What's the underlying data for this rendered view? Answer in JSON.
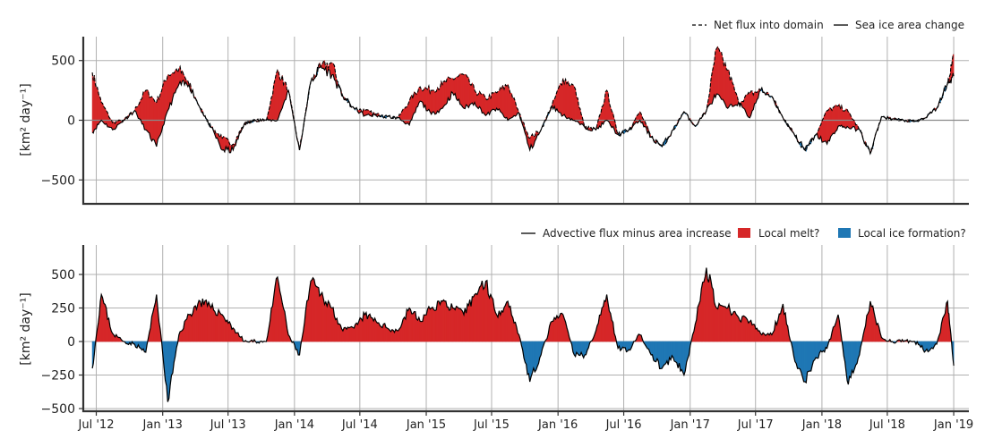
{
  "chart_data": [
    {
      "type": "area",
      "id": "top",
      "ylabel": "[km² day⁻¹]",
      "ylim": [
        -700,
        700
      ],
      "yticks": [
        -500,
        0,
        500
      ],
      "ytick_labels": [
        "−500",
        "0",
        "500"
      ],
      "grid": true,
      "legend_position": "top-right",
      "legend": [
        {
          "label": "Net flux into domain",
          "style": "dashed",
          "color": "#000000"
        },
        {
          "label": "Sea ice area change",
          "style": "solid",
          "color": "#000000"
        }
      ],
      "fill_colors": {
        "positive": "#d62728",
        "negative": "#1f77b4"
      },
      "x_dates": [
        "2012-06-20",
        "2012-07-15",
        "2012-08-15",
        "2012-09-15",
        "2012-10-15",
        "2012-11-15",
        "2012-12-15",
        "2013-01-15",
        "2013-02-15",
        "2013-03-15",
        "2013-04-15",
        "2013-05-15",
        "2013-06-15",
        "2013-07-15",
        "2013-08-15",
        "2013-09-15",
        "2013-10-15",
        "2013-11-15",
        "2013-12-15",
        "2014-01-15",
        "2014-02-15",
        "2014-03-15",
        "2014-04-15",
        "2014-05-15",
        "2014-06-15",
        "2014-07-15",
        "2014-08-15",
        "2014-09-15",
        "2014-10-15",
        "2014-11-15",
        "2014-12-15",
        "2015-01-15",
        "2015-02-15",
        "2015-03-15",
        "2015-04-15",
        "2015-05-15",
        "2015-06-15",
        "2015-07-15",
        "2015-08-15",
        "2015-09-15",
        "2015-10-15",
        "2015-11-15",
        "2015-12-15",
        "2016-01-15",
        "2016-02-15",
        "2016-03-15",
        "2016-04-15",
        "2016-05-15",
        "2016-06-15",
        "2016-07-15",
        "2016-08-15",
        "2016-09-15",
        "2016-10-15",
        "2016-11-15",
        "2016-12-15",
        "2017-01-15",
        "2017-02-15",
        "2017-03-15",
        "2017-04-15",
        "2017-05-15",
        "2017-06-15",
        "2017-07-15",
        "2017-08-15",
        "2017-09-15",
        "2017-10-15",
        "2017-11-15",
        "2017-12-15",
        "2018-01-15",
        "2018-02-15",
        "2018-03-15",
        "2018-04-15",
        "2018-05-15",
        "2018-06-15",
        "2018-07-15",
        "2018-08-15",
        "2018-09-15",
        "2018-10-15",
        "2018-11-15",
        "2018-12-15",
        "2019-01-01"
      ],
      "series": [
        {
          "name": "Net flux into domain",
          "values": [
            400,
            150,
            -20,
            0,
            80,
            250,
            150,
            380,
            430,
            300,
            100,
            -60,
            -150,
            -200,
            -30,
            0,
            0,
            420,
            250,
            -250,
            320,
            450,
            480,
            200,
            100,
            80,
            50,
            30,
            20,
            160,
            280,
            250,
            300,
            350,
            380,
            250,
            180,
            230,
            300,
            60,
            -150,
            -80,
            120,
            350,
            280,
            -60,
            -80,
            250,
            -120,
            -80,
            70,
            -140,
            -220,
            -80,
            70,
            -50,
            80,
            600,
            420,
            150,
            220,
            250,
            200,
            20,
            -110,
            -250,
            -120,
            80,
            120,
            70,
            -80,
            -280,
            30,
            10,
            0,
            -10,
            20,
            100,
            310,
            550
          ]
        },
        {
          "name": "Sea ice area change",
          "values": [
            -100,
            0,
            -80,
            0,
            80,
            -80,
            -220,
            80,
            300,
            300,
            100,
            -60,
            -250,
            -250,
            -30,
            0,
            0,
            0,
            250,
            -250,
            320,
            450,
            380,
            200,
            100,
            40,
            40,
            30,
            20,
            -40,
            160,
            50,
            100,
            230,
            100,
            150,
            40,
            100,
            0,
            60,
            -250,
            -80,
            120,
            40,
            0,
            -60,
            -80,
            0,
            -120,
            -80,
            0,
            -140,
            -220,
            -80,
            70,
            -50,
            80,
            220,
            100,
            150,
            20,
            250,
            200,
            20,
            -110,
            -250,
            -120,
            -200,
            -50,
            -60,
            -80,
            -280,
            30,
            10,
            0,
            -10,
            20,
            100,
            310,
            370
          ]
        }
      ]
    },
    {
      "type": "area",
      "id": "bottom",
      "ylabel": "[km² day⁻¹]",
      "ylim": [
        -520,
        720
      ],
      "yticks": [
        -500,
        -250,
        0,
        250,
        500
      ],
      "ytick_labels": [
        "−500",
        "−250",
        "0",
        "250",
        "500"
      ],
      "grid": true,
      "legend_position": "top-right",
      "legend": [
        {
          "label": "Advective flux minus area increase",
          "style": "solid",
          "color": "#000000"
        },
        {
          "label": "Local melt?",
          "style": "patch",
          "color": "#d62728"
        },
        {
          "label": "Local ice formation?",
          "style": "patch",
          "color": "#1f77b4"
        }
      ],
      "fill_colors": {
        "positive": "#d62728",
        "negative": "#1f77b4"
      },
      "x_dates": [
        "2012-06-20",
        "2012-07-15",
        "2012-08-15",
        "2012-09-15",
        "2012-10-15",
        "2012-11-15",
        "2012-12-15",
        "2013-01-15",
        "2013-02-15",
        "2013-03-15",
        "2013-04-15",
        "2013-05-15",
        "2013-06-15",
        "2013-07-15",
        "2013-08-15",
        "2013-09-15",
        "2013-10-15",
        "2013-11-15",
        "2013-12-15",
        "2014-01-15",
        "2014-02-15",
        "2014-03-15",
        "2014-04-15",
        "2014-05-15",
        "2014-06-15",
        "2014-07-15",
        "2014-08-15",
        "2014-09-15",
        "2014-10-15",
        "2014-11-15",
        "2014-12-15",
        "2015-01-15",
        "2015-02-15",
        "2015-03-15",
        "2015-04-15",
        "2015-05-15",
        "2015-06-15",
        "2015-07-15",
        "2015-08-15",
        "2015-09-15",
        "2015-10-15",
        "2015-11-15",
        "2015-12-15",
        "2016-01-15",
        "2016-02-15",
        "2016-03-15",
        "2016-04-15",
        "2016-05-15",
        "2016-06-15",
        "2016-07-15",
        "2016-08-15",
        "2016-09-15",
        "2016-10-15",
        "2016-11-15",
        "2016-12-15",
        "2017-01-15",
        "2017-02-15",
        "2017-03-15",
        "2017-04-15",
        "2017-05-15",
        "2017-06-15",
        "2017-07-15",
        "2017-08-15",
        "2017-09-15",
        "2017-10-15",
        "2017-11-15",
        "2017-12-15",
        "2018-01-15",
        "2018-02-15",
        "2018-03-15",
        "2018-04-15",
        "2018-05-15",
        "2018-06-15",
        "2018-07-15",
        "2018-08-15",
        "2018-09-15",
        "2018-10-15",
        "2018-11-15",
        "2018-12-15",
        "2019-01-01"
      ],
      "series": [
        {
          "name": "Advective flux minus area increase",
          "values": [
            -200,
            350,
            60,
            0,
            -20,
            -80,
            350,
            -450,
            50,
            200,
            300,
            250,
            200,
            100,
            0,
            0,
            0,
            480,
            50,
            -100,
            450,
            350,
            250,
            80,
            100,
            200,
            150,
            100,
            80,
            250,
            150,
            250,
            300,
            250,
            200,
            350,
            450,
            200,
            300,
            50,
            -300,
            -100,
            150,
            200,
            -100,
            -100,
            80,
            350,
            -50,
            -60,
            50,
            -100,
            -200,
            -120,
            -250,
            130,
            550,
            250,
            250,
            180,
            150,
            60,
            50,
            280,
            -110,
            -300,
            -120,
            -50,
            200,
            -320,
            -100,
            300,
            30,
            0,
            0,
            0,
            -70,
            -20,
            300,
            -180
          ]
        }
      ]
    }
  ],
  "x_axis": {
    "tick_dates": [
      "2012-07-01",
      "2013-01-01",
      "2013-07-01",
      "2014-01-01",
      "2014-07-01",
      "2015-01-01",
      "2015-07-01",
      "2016-01-01",
      "2016-07-01",
      "2017-01-01",
      "2017-07-01",
      "2018-01-01",
      "2018-07-01",
      "2019-01-01"
    ],
    "tick_labels": [
      "Jul '12",
      "Jan '13",
      "Jul '13",
      "Jan '14",
      "Jul '14",
      "Jan '15",
      "Jul '15",
      "Jan '16",
      "Jul '16",
      "Jan '17",
      "Jul '17",
      "Jan '18",
      "Jul '18",
      "Jan '19"
    ]
  }
}
